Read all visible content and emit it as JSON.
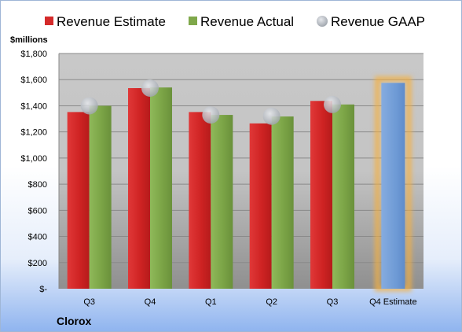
{
  "chart_data": {
    "type": "bar",
    "unit_label": "$millions",
    "company": "Clorox",
    "categories": [
      "Q3",
      "Q4",
      "Q1",
      "Q2",
      "Q3",
      "Q4 Estimate"
    ],
    "y_ticks": [
      "$-",
      "$200",
      "$400",
      "$600",
      "$800",
      "$1,000",
      "$1,200",
      "$1,400",
      "$1,600",
      "$1,800"
    ],
    "ylim": [
      0,
      1800
    ],
    "grid": true,
    "legend_position": "top",
    "series": [
      {
        "name": "Revenue Estimate",
        "kind": "bar",
        "color": "#d42a2a",
        "values": [
          1352,
          1535,
          1352,
          1265,
          1437,
          null
        ]
      },
      {
        "name": "Revenue Actual",
        "kind": "bar",
        "color": "#7fa84a",
        "values": [
          1400,
          1540,
          1330,
          1318,
          1410,
          null
        ]
      },
      {
        "name": "Revenue GAAP",
        "kind": "marker",
        "color": "#b8bec6",
        "values": [
          1400,
          1535,
          1330,
          1320,
          1410,
          null
        ]
      }
    ],
    "estimate_bar": {
      "category": "Q4 Estimate",
      "value": 1575,
      "color": "#6f9dd9",
      "glow_color": "#f5b041"
    }
  }
}
